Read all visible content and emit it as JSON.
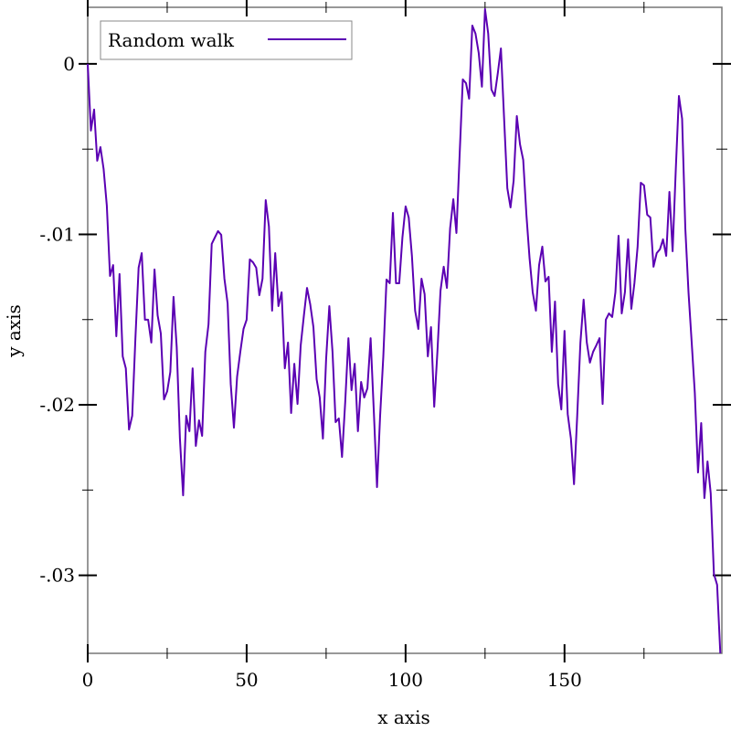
{
  "chart_data": {
    "type": "line",
    "title": "",
    "xlabel": "x axis",
    "ylabel": "y axis",
    "xlim": [
      0,
      199.5
    ],
    "ylim": [
      -0.03458,
      0.00332
    ],
    "grid": false,
    "legend_position": "top-left",
    "x_major_ticks": [
      0,
      50,
      100,
      150
    ],
    "x_tick_labels": [
      "0",
      "50",
      "100",
      "150"
    ],
    "x_minor_ticks": [
      25,
      75,
      125,
      175
    ],
    "y_major_ticks": [
      0,
      -0.01,
      -0.02,
      -0.03
    ],
    "y_tick_labels": [
      "0",
      "-.01",
      "-.02",
      "-.03"
    ],
    "y_minor_ticks": [
      -0.005,
      -0.015,
      -0.025
    ],
    "series": [
      {
        "name": "Random walk",
        "color": "#5b00b3",
        "values": [
          0,
          -0.00391,
          -0.00268,
          -0.00568,
          -0.00488,
          -0.00617,
          -0.00831,
          -0.01244,
          -0.0118,
          -0.01598,
          -0.01233,
          -0.01716,
          -0.01786,
          -0.02145,
          -0.02064,
          -0.01609,
          -0.01196,
          -0.0111,
          -0.01501,
          -0.01501,
          -0.01635,
          -0.01206,
          -0.01475,
          -0.01582,
          -0.01968,
          -0.0192,
          -0.01807,
          -0.01367,
          -0.01662,
          -0.02198,
          -0.02531,
          -0.02064,
          -0.02155,
          -0.01786,
          -0.02241,
          -0.02091,
          -0.02182,
          -0.01689,
          -0.01528,
          -0.01056,
          -0.01019,
          -0.00981,
          -0.01003,
          -0.0126,
          -0.01405,
          -0.01877,
          -0.02134,
          -0.01834,
          -0.01689,
          -0.01555,
          -0.01501,
          -0.01147,
          -0.01164,
          -0.01196,
          -0.01357,
          -0.0126,
          -0.00799,
          -0.00954,
          -0.01448,
          -0.0111,
          -0.01421,
          -0.0134,
          -0.01786,
          -0.01635,
          -0.02048,
          -0.01759,
          -0.01995,
          -0.01651,
          -0.01475,
          -0.01314,
          -0.0141,
          -0.01544,
          -0.0185,
          -0.01957,
          -0.02198,
          -0.01732,
          -0.01421,
          -0.01689,
          -0.02102,
          -0.0208,
          -0.02306,
          -0.01984,
          -0.01609,
          -0.01914,
          -0.01759,
          -0.02155,
          -0.01866,
          -0.01957,
          -0.01903,
          -0.01609,
          -0.02038,
          -0.02483,
          -0.02064,
          -0.01716,
          -0.01265,
          -0.01287,
          -0.00874,
          -0.01287,
          -0.01287,
          -0.01019,
          -0.00836,
          -0.00901,
          -0.01126,
          -0.01448,
          -0.01555,
          -0.0126,
          -0.01351,
          -0.01716,
          -0.01544,
          -0.02011,
          -0.01689,
          -0.0133,
          -0.0119,
          -0.01314,
          -0.00965,
          -0.00794,
          -0.00992,
          -0.00536,
          -0.00091,
          -0.00113,
          -0.00204,
          0.00225,
          0.00177,
          0.00064,
          -0.00134,
          0.00322,
          0.00177,
          -0.0015,
          -0.00188,
          -0.00054,
          0.00091,
          -0.00322,
          -0.00729,
          -0.00842,
          -0.00686,
          -0.00306,
          -0.00472,
          -0.00563,
          -0.00885,
          -0.01137,
          -0.0134,
          -0.01448,
          -0.0118,
          -0.01072,
          -0.01276,
          -0.01249,
          -0.01689,
          -0.01394,
          -0.01877,
          -0.02027,
          -0.01566,
          -0.02054,
          -0.02198,
          -0.02466,
          -0.02064,
          -0.01635,
          -0.01383,
          -0.01635,
          -0.01753,
          -0.01689,
          -0.01651,
          -0.01609,
          -0.01995,
          -0.01501,
          -0.01464,
          -0.01485,
          -0.0134,
          -0.01008,
          -0.01464,
          -0.0134,
          -0.01029,
          -0.01437,
          -0.01287,
          -0.01072,
          -0.00697,
          -0.00713,
          -0.00885,
          -0.00901,
          -0.0119,
          -0.0111,
          -0.01088,
          -0.01029,
          -0.01126,
          -0.00751,
          -0.01099,
          -0.00617,
          -0.00188,
          -0.00322,
          -0.00965,
          -0.0134,
          -0.01635,
          -0.0193,
          -0.02397,
          -0.02107,
          -0.02547,
          -0.02332,
          -0.0252,
          -0.02992,
          -0.03056,
          -0.03458
        ]
      }
    ]
  }
}
